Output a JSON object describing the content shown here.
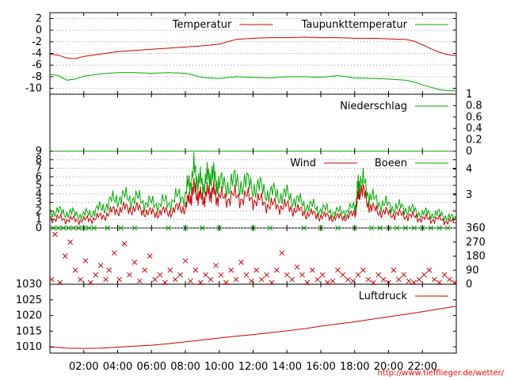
{
  "chart_data": [
    {
      "type": "line",
      "series": [
        {
          "name": "Temperatur",
          "color": "#cc0000",
          "x": [
            0,
            0.5,
            1,
            1.5,
            2,
            3,
            4,
            5,
            6,
            7,
            8,
            9,
            10,
            10.5,
            11,
            12,
            13,
            14,
            15,
            16,
            17,
            18,
            19,
            20,
            21,
            21.5,
            22,
            22.5,
            23,
            23.5,
            24
          ],
          "y": [
            -4.1,
            -4.3,
            -4.8,
            -4.9,
            -4.5,
            -4.1,
            -3.7,
            -3.5,
            -3.3,
            -3.1,
            -2.9,
            -2.7,
            -2.4,
            -2.0,
            -1.6,
            -1.4,
            -1.3,
            -1.3,
            -1.2,
            -1.3,
            -1.3,
            -1.4,
            -1.4,
            -1.5,
            -1.6,
            -1.9,
            -2.5,
            -3.2,
            -3.8,
            -4.2,
            -4.4
          ]
        },
        {
          "name": "Taupunkttemperatur",
          "color": "#00aa00",
          "x": [
            0,
            0.5,
            1,
            1.5,
            2,
            3,
            4,
            5,
            6,
            7,
            8,
            9,
            10,
            11,
            12,
            13,
            14,
            15,
            16,
            17,
            18,
            19,
            20,
            21,
            21.5,
            22,
            22.5,
            23,
            23.5,
            24
          ],
          "y": [
            -7.6,
            -7.8,
            -8.6,
            -8.4,
            -7.9,
            -7.5,
            -7.3,
            -7.3,
            -7.4,
            -7.3,
            -7.4,
            -8.1,
            -8.3,
            -8.0,
            -8.1,
            -8.2,
            -8.0,
            -8.0,
            -8.1,
            -7.8,
            -8.2,
            -8.3,
            -8.4,
            -8.6,
            -8.9,
            -9.4,
            -9.8,
            -10.2,
            -10.4,
            -10.4
          ]
        }
      ],
      "ylim": [
        -11,
        3
      ],
      "y_ticks": [
        "2",
        "0",
        "-2",
        "-4",
        "-6",
        "-8",
        "-10"
      ],
      "grid": true,
      "legend": "top-right"
    },
    {
      "type": "line",
      "series": [
        {
          "name": "Niederschlag",
          "color": "#00aa00",
          "x": [
            0,
            24
          ],
          "y": [
            0,
            0
          ]
        }
      ],
      "ylim": [
        0,
        1
      ],
      "y_ticks_right": [
        "1",
        "0.8",
        "0.6",
        "0.4",
        "0.2",
        "0"
      ],
      "legend": "top-right"
    },
    {
      "type": "line",
      "series": [
        {
          "name": "Wind",
          "color": "#cc0000",
          "x": [
            0,
            1,
            2,
            3,
            4,
            5,
            6,
            7,
            8,
            8.5,
            9,
            9.5,
            10,
            11,
            12,
            13,
            14,
            15,
            16,
            17,
            18,
            18.3,
            19,
            20,
            21,
            22,
            23,
            24
          ],
          "y": [
            1.2,
            1.0,
            0.9,
            1.3,
            2.2,
            2.3,
            1.7,
            1.9,
            2.5,
            4.5,
            3.4,
            4.4,
            3.5,
            3.7,
            3.4,
            2.7,
            2.5,
            1.8,
            1.4,
            1.2,
            1.5,
            4.8,
            2.2,
            1.7,
            1.5,
            1.1,
            1.0,
            0.6
          ]
        },
        {
          "name": "Boeen",
          "color": "#00aa00",
          "x": [
            0,
            1,
            2,
            3,
            4,
            5,
            6,
            7,
            8,
            8.5,
            9,
            9.5,
            10,
            11,
            12,
            13,
            14,
            15,
            16,
            17,
            18,
            18.3,
            19,
            20,
            21,
            22,
            23,
            24
          ],
          "y": [
            2.0,
            1.8,
            1.5,
            2.3,
            3.6,
            3.5,
            2.8,
            3.0,
            4.0,
            6.6,
            5.0,
            6.4,
            5.0,
            5.4,
            5.0,
            4.1,
            3.8,
            2.8,
            2.2,
            1.8,
            2.3,
            6.0,
            3.4,
            2.6,
            2.3,
            1.7,
            1.6,
            1.0
          ]
        }
      ],
      "ylim": [
        0,
        9
      ],
      "y_ticks": [
        "9",
        "8",
        "7",
        "6",
        "5",
        "4",
        "3",
        "2",
        "1",
        "0"
      ],
      "y_ticks_right": [
        "4",
        "3"
      ],
      "grid": true,
      "legend": "top-right"
    },
    {
      "type": "scatter",
      "series": [
        {
          "color": "#cc0000",
          "x": [
            0.1,
            0.3,
            0.6,
            0.9,
            1.2,
            1.5,
            1.8,
            2.1,
            2.4,
            2.7,
            3.0,
            3.3,
            3.5,
            3.8,
            4.1,
            4.4,
            4.7,
            5.0,
            5.3,
            5.6,
            5.9,
            6.2,
            6.5,
            6.8,
            7.1,
            7.4,
            7.7,
            8.0,
            8.3,
            8.6,
            8.9,
            9.2,
            9.5,
            9.8,
            10.1,
            10.4,
            10.7,
            11.0,
            11.3,
            11.6,
            11.9,
            12.2,
            12.5,
            12.8,
            13.1,
            13.4,
            13.7,
            14.0,
            14.3,
            14.6,
            14.9,
            15.2,
            15.5,
            15.8,
            16.1,
            16.4,
            16.7,
            17.0,
            17.3,
            17.6,
            17.9,
            18.2,
            18.5,
            18.8,
            19.1,
            19.4,
            19.7,
            20.0,
            20.3,
            20.6,
            20.9,
            21.2,
            21.5,
            21.8,
            22.1,
            22.4,
            22.7,
            23.0,
            23.3,
            23.6,
            23.9
          ],
          "y": [
            30,
            320,
            10,
            180,
            270,
            90,
            30,
            150,
            10,
            60,
            120,
            30,
            90,
            200,
            30,
            260,
            60,
            140,
            20,
            90,
            180,
            30,
            60,
            10,
            90,
            30,
            60,
            150,
            20,
            90,
            10,
            60,
            30,
            120,
            60,
            10,
            90,
            30,
            140,
            60,
            20,
            90,
            30,
            60,
            10,
            90,
            200,
            60,
            30,
            110,
            60,
            10,
            90,
            30,
            60,
            10,
            20,
            90,
            60,
            30,
            20,
            60,
            90,
            30,
            10,
            60,
            30,
            10,
            90,
            30,
            60,
            20,
            10,
            30,
            60,
            90,
            30,
            10,
            60,
            30,
            10
          ]
        },
        {
          "color": "#00aa00",
          "x": [
            0.2,
            0.5,
            0.8,
            1.1,
            1.4,
            1.7,
            2.0,
            2.3,
            2.6,
            3.4,
            4.2,
            5.0,
            7.0,
            8.0,
            9.0,
            10.0,
            12.0,
            13.0,
            15.0,
            16.0,
            17.0,
            18.0,
            19.0,
            19.5,
            20.0,
            20.5,
            21.0,
            21.5,
            22.0,
            22.5,
            23.0,
            23.5
          ],
          "y": [
            360,
            360,
            360,
            360,
            360,
            360,
            360,
            360,
            360,
            360,
            360,
            360,
            360,
            360,
            360,
            360,
            360,
            360,
            360,
            360,
            360,
            360,
            360,
            360,
            360,
            360,
            360,
            360,
            360,
            360,
            360,
            360
          ]
        }
      ],
      "ylim": [
        0,
        360
      ],
      "y_ticks_right": [
        "360",
        "270",
        "180",
        "90",
        "0"
      ]
    },
    {
      "type": "line",
      "series": [
        {
          "name": "Luftdruck",
          "color": "#cc0000",
          "x": [
            0,
            1,
            2,
            3,
            4,
            5,
            6,
            7,
            8,
            9,
            10,
            11,
            12,
            13,
            14,
            15,
            16,
            17,
            18,
            19,
            20,
            21,
            22,
            23,
            24
          ],
          "y": [
            1010.0,
            1009.6,
            1009.5,
            1009.6,
            1009.9,
            1010.2,
            1010.5,
            1011.0,
            1011.6,
            1012.2,
            1012.8,
            1013.4,
            1013.9,
            1014.5,
            1015.1,
            1015.8,
            1016.6,
            1017.3,
            1018.0,
            1018.8,
            1019.6,
            1020.4,
            1021.2,
            1022.1,
            1023.0
          ]
        }
      ],
      "ylim": [
        1008,
        1030
      ],
      "y_ticks": [
        "1030",
        "1025",
        "1020",
        "1015",
        "1010"
      ],
      "legend": "top-right"
    }
  ],
  "x_ticks": [
    {
      "value": 2,
      "label": "02:00"
    },
    {
      "value": 4,
      "label": "04:00"
    },
    {
      "value": 6,
      "label": "06:00"
    },
    {
      "value": 8,
      "label": "08:00"
    },
    {
      "value": 10,
      "label": "10:00"
    },
    {
      "value": 12,
      "label": "12:00"
    },
    {
      "value": 14,
      "label": "14:00"
    },
    {
      "value": 16,
      "label": "16:00"
    },
    {
      "value": 18,
      "label": "18:00"
    },
    {
      "value": 20,
      "label": "20:00"
    },
    {
      "value": 22,
      "label": "22:00"
    }
  ],
  "xlim": [
    0,
    24
  ],
  "source_url": "http://www.tiefflieger.de/wetter/"
}
